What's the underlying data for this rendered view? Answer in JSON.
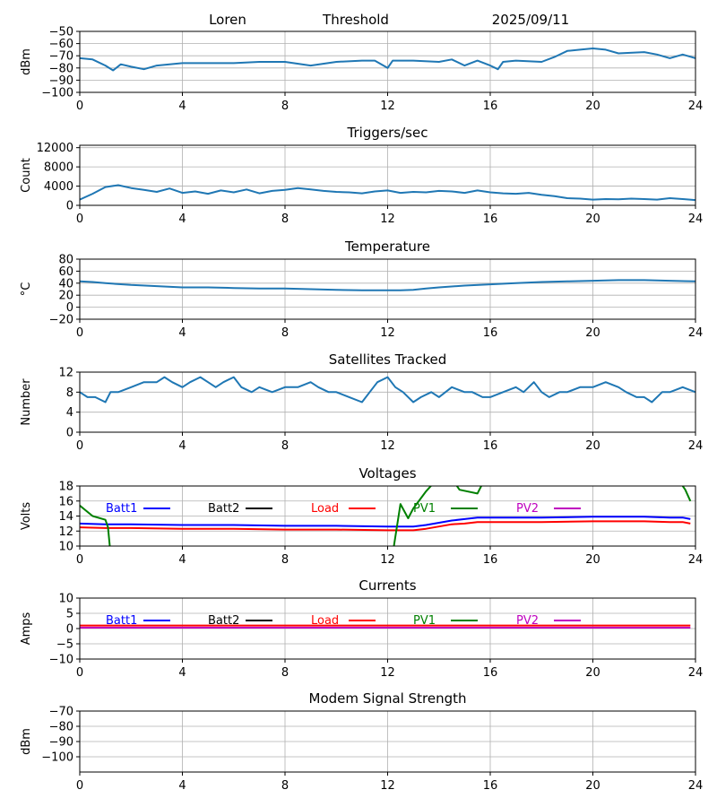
{
  "header": {
    "site": "Loren",
    "label": "Threshold",
    "date": "2025/09/11"
  },
  "colors": {
    "series": "#1f77b4",
    "grid": "#b0b0b0",
    "batt1": "#0000ff",
    "batt2": "#000000",
    "load": "#ff0000",
    "pv1": "#008000",
    "pv2": "#bf00bf"
  },
  "chart_data": [
    {
      "type": "line",
      "title": "",
      "ylabel": "dBm",
      "ylim": [
        -100,
        -50
      ],
      "yticks": [
        -50,
        -60,
        -70,
        -80,
        -90,
        -100
      ],
      "xlim": [
        0,
        24
      ],
      "xticks": [
        0,
        4,
        8,
        12,
        16,
        20,
        24
      ],
      "series": [
        {
          "x": [
            0,
            0.5,
            1,
            1.3,
            1.6,
            2,
            2.5,
            3,
            4,
            5,
            6,
            7,
            8,
            9,
            10,
            11,
            11.5,
            12,
            12.2,
            12.5,
            13,
            14,
            14.5,
            15,
            15.5,
            16,
            16.3,
            16.5,
            17,
            18,
            18.5,
            19,
            19.5,
            20,
            20.5,
            21,
            22,
            22.5,
            23,
            23.5,
            24
          ],
          "y": [
            -72,
            -73,
            -78,
            -82,
            -77,
            -79,
            -81,
            -78,
            -76,
            -76,
            -76,
            -75,
            -75,
            -78,
            -75,
            -74,
            -74,
            -80,
            -74,
            -74,
            -74,
            -75,
            -73,
            -78,
            -74,
            -78,
            -81,
            -75,
            -74,
            -75,
            -71,
            -66,
            -65,
            -64,
            -65,
            -68,
            -67,
            -69,
            -72,
            -69,
            -72
          ]
        }
      ]
    },
    {
      "type": "line",
      "title": "Triggers/sec",
      "ylabel": "Count",
      "ylim": [
        0,
        12500
      ],
      "yticks": [
        0,
        4000,
        8000,
        12000
      ],
      "xlim": [
        0,
        24
      ],
      "xticks": [
        0,
        4,
        8,
        12,
        16,
        20,
        24
      ],
      "series": [
        {
          "x": [
            0,
            0.5,
            1,
            1.5,
            2,
            2.5,
            3,
            3.5,
            4,
            4.5,
            5,
            5.5,
            6,
            6.5,
            7,
            7.5,
            8,
            8.5,
            9,
            9.5,
            10,
            10.5,
            11,
            11.5,
            12,
            12.5,
            13,
            13.5,
            14,
            14.5,
            15,
            15.5,
            16,
            16.5,
            17,
            17.5,
            18,
            18.5,
            19,
            19.5,
            20,
            20.5,
            21,
            21.5,
            22,
            22.5,
            23,
            23.5,
            24
          ],
          "y": [
            1200,
            2400,
            3800,
            4200,
            3600,
            3200,
            2800,
            3500,
            2600,
            2900,
            2400,
            3100,
            2700,
            3300,
            2500,
            3000,
            3200,
            3600,
            3300,
            3000,
            2800,
            2700,
            2500,
            2900,
            3100,
            2600,
            2800,
            2700,
            3000,
            2900,
            2600,
            3100,
            2700,
            2500,
            2400,
            2600,
            2200,
            1900,
            1500,
            1400,
            1200,
            1300,
            1250,
            1400,
            1300,
            1200,
            1500,
            1300,
            1100
          ]
        }
      ]
    },
    {
      "type": "line",
      "title": "Temperature",
      "ylabel": "°C",
      "ylim": [
        -20,
        80
      ],
      "yticks": [
        80,
        60,
        40,
        20,
        0,
        -20
      ],
      "xlim": [
        0,
        24
      ],
      "xticks": [
        0,
        4,
        8,
        12,
        16,
        20,
        24
      ],
      "series": [
        {
          "x": [
            0,
            0.5,
            1,
            2,
            3,
            4,
            5,
            6,
            7,
            8,
            9,
            10,
            11,
            12,
            12.5,
            13,
            13.5,
            14,
            15,
            16,
            17,
            18,
            19,
            20,
            21,
            22,
            23,
            24
          ],
          "y": [
            43,
            42,
            40,
            37,
            35,
            33,
            33,
            32,
            31,
            31,
            30,
            29,
            28,
            28,
            28,
            29,
            31,
            33,
            36,
            38,
            40,
            42,
            43,
            44,
            45,
            45,
            44,
            43
          ]
        }
      ]
    },
    {
      "type": "line",
      "title": "Satellites Tracked",
      "ylabel": "Number",
      "ylim": [
        0,
        12
      ],
      "yticks": [
        0,
        4,
        8,
        12
      ],
      "xlim": [
        0,
        24
      ],
      "xticks": [
        0,
        4,
        8,
        12,
        16,
        20,
        24
      ],
      "series": [
        {
          "x": [
            0,
            0.3,
            0.6,
            1,
            1.2,
            1.5,
            2,
            2.5,
            3,
            3.3,
            3.6,
            4,
            4.3,
            4.7,
            5,
            5.3,
            5.6,
            6,
            6.3,
            6.7,
            7,
            7.5,
            8,
            8.5,
            9,
            9.3,
            9.7,
            10,
            10.5,
            11,
            11.3,
            11.6,
            12,
            12.3,
            12.6,
            13,
            13.3,
            13.7,
            14,
            14.5,
            15,
            15.3,
            15.7,
            16,
            16.5,
            17,
            17.3,
            17.7,
            18,
            18.3,
            18.7,
            19,
            19.5,
            20,
            20.5,
            21,
            21.3,
            21.7,
            22,
            22.3,
            22.7,
            23,
            23.5,
            24
          ],
          "y": [
            8,
            7,
            7,
            6,
            8,
            8,
            9,
            10,
            10,
            11,
            10,
            9,
            10,
            11,
            10,
            9,
            10,
            11,
            9,
            8,
            9,
            8,
            9,
            9,
            10,
            9,
            8,
            8,
            7,
            6,
            8,
            10,
            11,
            9,
            8,
            6,
            7,
            8,
            7,
            9,
            8,
            8,
            7,
            7,
            8,
            9,
            8,
            10,
            8,
            7,
            8,
            8,
            9,
            9,
            10,
            9,
            8,
            7,
            7,
            6,
            8,
            8,
            9,
            8
          ]
        }
      ]
    },
    {
      "type": "line",
      "title": "Voltages",
      "ylabel": "Volts",
      "ylim": [
        10,
        18
      ],
      "yticks": [
        10,
        12,
        14,
        16,
        18
      ],
      "xlim": [
        0,
        24
      ],
      "xticks": [
        0,
        4,
        8,
        12,
        16,
        20,
        24
      ],
      "legend": [
        "Batt1",
        "Batt2",
        "Load",
        "PV1",
        "PV2"
      ],
      "series": [
        {
          "name": "Batt1",
          "x": [
            0,
            1,
            2,
            4,
            6,
            8,
            10,
            12,
            12.5,
            13,
            13.5,
            14,
            14.5,
            15,
            15.5,
            16,
            18,
            20,
            22,
            23,
            23.5,
            23.8
          ],
          "y": [
            13,
            12.9,
            12.9,
            12.8,
            12.8,
            12.7,
            12.7,
            12.6,
            12.6,
            12.6,
            12.8,
            13.1,
            13.4,
            13.6,
            13.8,
            13.8,
            13.8,
            13.9,
            13.9,
            13.8,
            13.8,
            13.6
          ]
        },
        {
          "name": "Load",
          "x": [
            0,
            1,
            2,
            4,
            6,
            8,
            10,
            12,
            12.5,
            13,
            13.5,
            14,
            14.5,
            15,
            15.5,
            16,
            18,
            20,
            22,
            23,
            23.5,
            23.8
          ],
          "y": [
            12.5,
            12.4,
            12.4,
            12.3,
            12.3,
            12.2,
            12.2,
            12.1,
            12.1,
            12.1,
            12.3,
            12.6,
            12.9,
            13.0,
            13.2,
            13.2,
            13.2,
            13.3,
            13.3,
            13.2,
            13.2,
            13.0
          ]
        },
        {
          "name": "PV1",
          "x": [
            0,
            0.5,
            1,
            1.1,
            1.2,
            12.2,
            12.5,
            12.8,
            13,
            13.5,
            14,
            14.5,
            14.8,
            15.5,
            15.8
          ],
          "y": [
            15.4,
            14.0,
            13.5,
            12.5,
            9,
            9,
            15.6,
            13.7,
            15,
            17.3,
            19.2,
            19,
            17.5,
            17,
            19
          ]
        },
        {
          "name": "PV1",
          "x": [
            23.3,
            23.6,
            23.8
          ],
          "y": [
            19,
            17.5,
            16
          ]
        }
      ]
    },
    {
      "type": "line",
      "title": "Currents",
      "ylabel": "Amps",
      "ylim": [
        -10,
        10
      ],
      "yticks": [
        -10,
        -5,
        0,
        5,
        10
      ],
      "xlim": [
        0,
        24
      ],
      "xticks": [
        0,
        4,
        8,
        12,
        16,
        20,
        24
      ],
      "legend": [
        "Batt1",
        "Batt2",
        "Load",
        "PV1",
        "PV2"
      ],
      "series": [
        {
          "name": "Load",
          "x": [
            0,
            23.8
          ],
          "y": [
            1,
            1
          ]
        },
        {
          "name": "PV2",
          "x": [
            0,
            23.8
          ],
          "y": [
            0.3,
            0.3
          ]
        }
      ]
    },
    {
      "type": "line",
      "title": "Modem Signal Strength",
      "ylabel": "dBm",
      "ylim": [
        -110,
        -70
      ],
      "yticks": [
        -70,
        -80,
        -90,
        -100
      ],
      "xlim": [
        0,
        24
      ],
      "xticks": [
        0,
        4,
        8,
        12,
        16,
        20,
        24
      ],
      "series": []
    }
  ]
}
